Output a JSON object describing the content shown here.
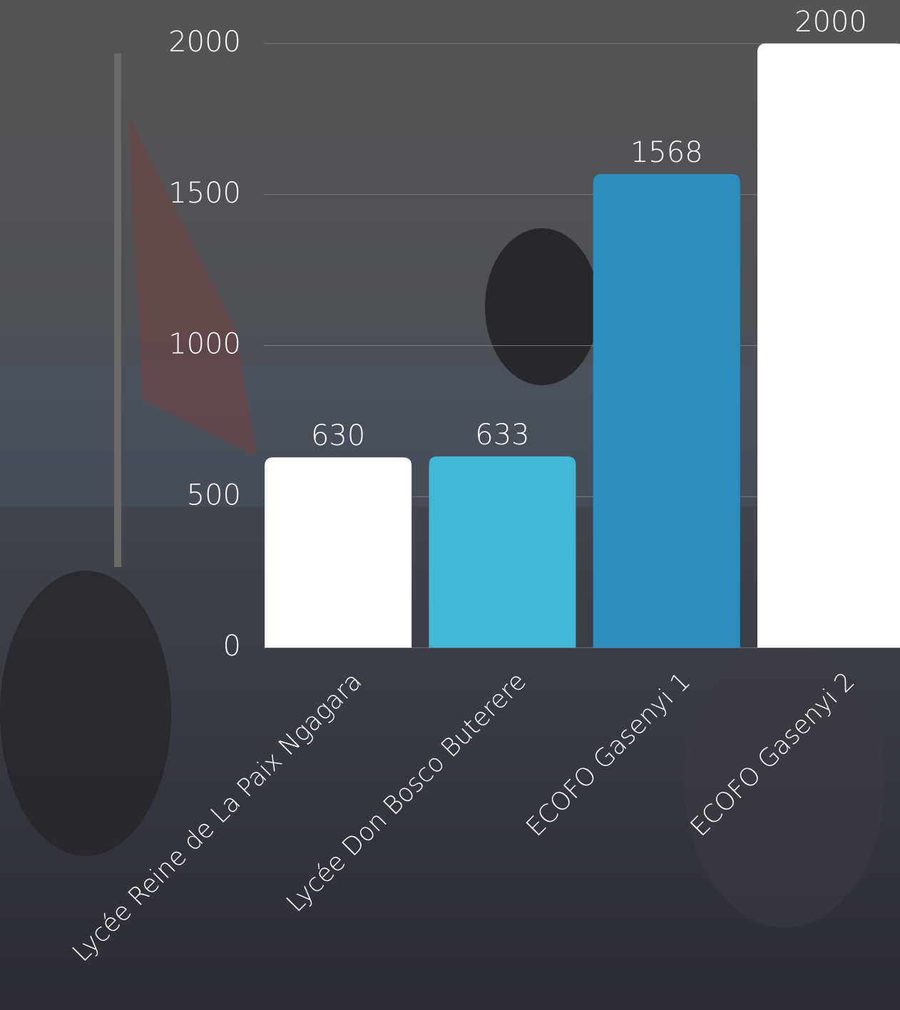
{
  "chart_data": {
    "type": "bar",
    "categories": [
      "Lycée Reine de La Paix Ngagara",
      "Lycée Don Bosco Buterere",
      "ECOFO Gasenyi 1",
      "ECOFO Gasenyi 2"
    ],
    "values": [
      630,
      633,
      1568,
      2000
    ],
    "colors": [
      "#ffffff",
      "#41b8d8",
      "#2e8dbf",
      "#ffffff"
    ],
    "ylim": [
      0,
      2000
    ],
    "yticks": [
      0,
      500,
      1000,
      1500,
      2000
    ],
    "grid": true
  }
}
